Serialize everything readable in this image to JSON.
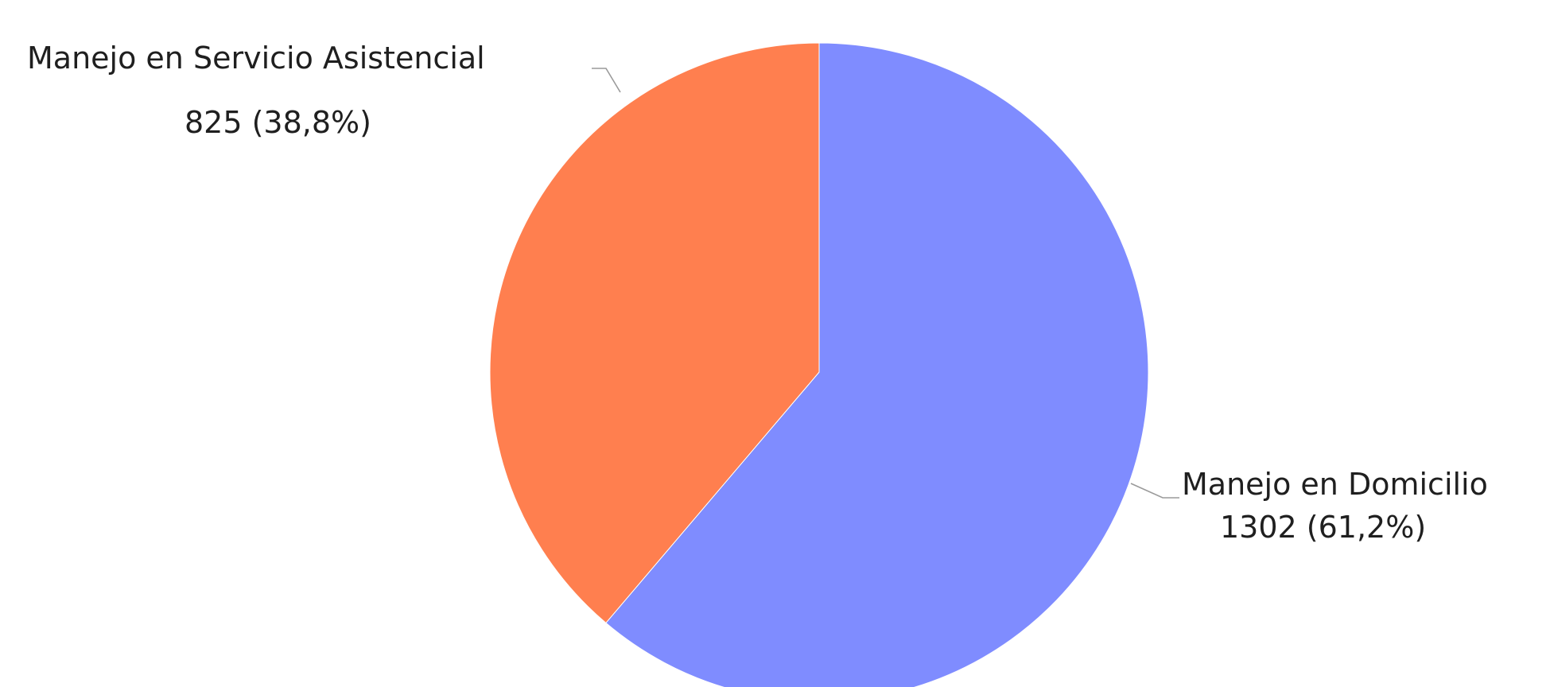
{
  "chart_data": {
    "type": "pie",
    "title": "",
    "slices": [
      {
        "name": "Manejo en Domicilio",
        "value": 1302,
        "percent_label": "1302 (61,2%)",
        "color": "#7f8cff"
      },
      {
        "name": "Manejo en Servicio Asistencial",
        "value": 825,
        "percent_label": "825 (38,8%)",
        "color": "#ff7f4f"
      }
    ],
    "start_angle": "top",
    "direction": "clockwise",
    "legend": "none"
  }
}
